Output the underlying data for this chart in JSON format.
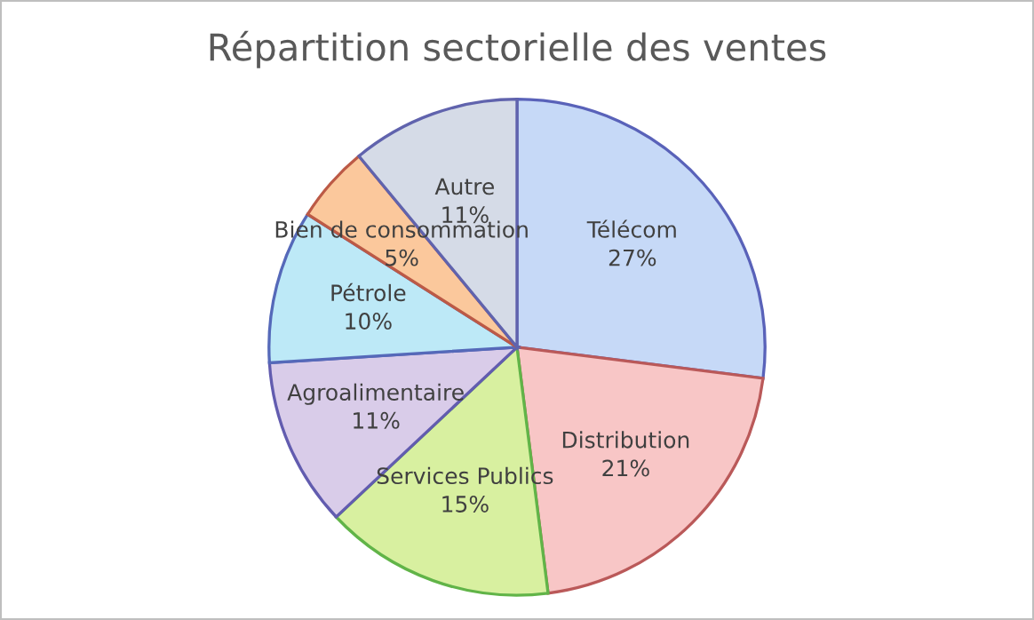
{
  "chart_data": {
    "type": "pie",
    "title": "Répartition sectorielle des ventes",
    "categories": [
      "Télécom",
      "Distribution",
      "Services Publics",
      "Agroalimentaire",
      "Pétrole",
      "Bien de consommation",
      "Autre"
    ],
    "values": [
      27,
      21,
      15,
      11,
      10,
      5,
      11
    ],
    "value_labels": [
      "27%",
      "21%",
      "15%",
      "11%",
      "10%",
      "5%",
      "11%"
    ],
    "colors": [
      "#c6d9f7",
      "#f8c6c6",
      "#d8f0a0",
      "#d9cce9",
      "#bde9f7",
      "#fbc89c",
      "#d5dbe7"
    ],
    "legend": false
  }
}
